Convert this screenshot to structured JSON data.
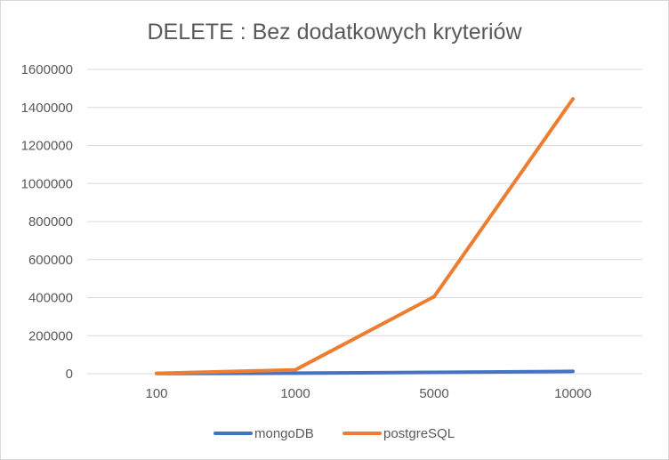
{
  "chart_data": {
    "type": "line",
    "title": "DELETE : Bez dodatkowych kryteriów",
    "categories": [
      "100",
      "1000",
      "5000",
      "10000"
    ],
    "series": [
      {
        "name": "mongoDB",
        "color": "#4472c4",
        "values": [
          800,
          3000,
          7000,
          12000
        ]
      },
      {
        "name": "postgreSQL",
        "color": "#ed7d31",
        "values": [
          2000,
          20000,
          405000,
          1445000
        ]
      }
    ],
    "ylim": [
      0,
      1600000
    ],
    "yticks": [
      "0",
      "200000",
      "400000",
      "600000",
      "800000",
      "1000000",
      "1200000",
      "1400000",
      "1600000"
    ],
    "grid": true,
    "legend_position": "bottom"
  }
}
